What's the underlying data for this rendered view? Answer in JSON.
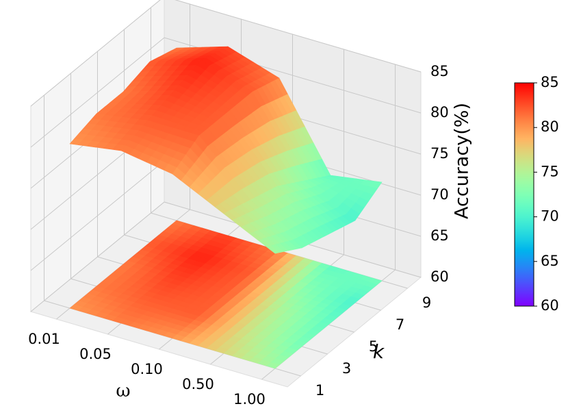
{
  "chart_data": {
    "type": "surface3d",
    "xlabel": "ω",
    "ylabel": "k",
    "zlabel": "Accuracy(%)",
    "x_categories": [
      "0.01",
      "0.05",
      "0.10",
      "0.50",
      "1.00"
    ],
    "y": [
      1,
      3,
      5,
      7,
      9
    ],
    "ylim": [
      0,
      10
    ],
    "yticks": [
      1,
      3,
      5,
      7,
      9
    ],
    "zlim": [
      60,
      85
    ],
    "zticks": [
      60,
      65,
      70,
      75,
      80,
      85
    ],
    "z": [
      [
        80,
        81,
        80,
        77,
        74
      ],
      [
        81,
        82,
        82,
        76,
        72
      ],
      [
        81,
        83,
        82,
        75,
        71
      ],
      [
        82,
        84,
        82,
        73,
        70
      ],
      [
        81,
        83,
        81,
        71,
        72
      ]
    ],
    "colormap": "rainbow",
    "floor_contour": true,
    "grid": true,
    "colorbar": {
      "clim": [
        60,
        85
      ],
      "ticks": [
        60,
        65,
        70,
        75,
        80,
        85
      ]
    }
  }
}
